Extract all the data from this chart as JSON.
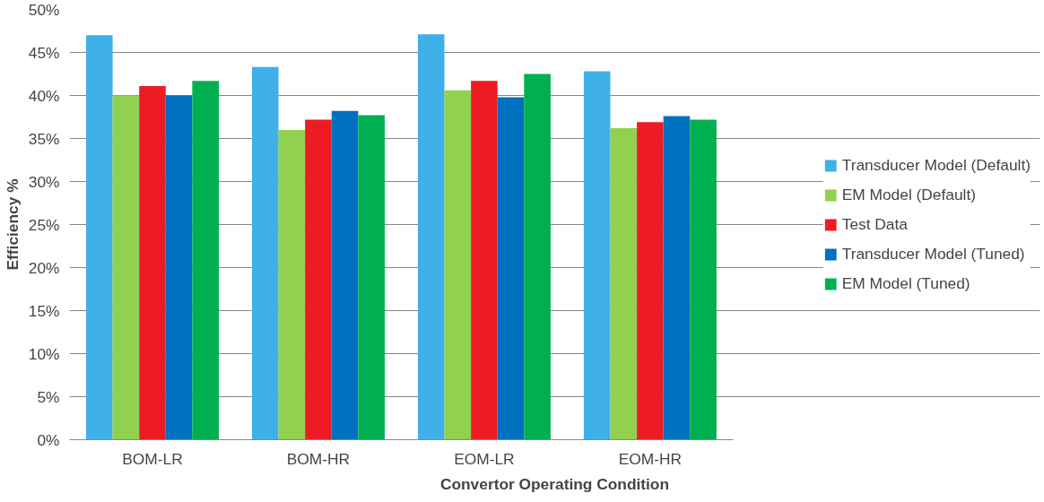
{
  "chart_data": {
    "type": "bar",
    "xlabel": "Convertor Operating Condition",
    "ylabel": "Efficiency %",
    "categories": [
      "BOM-LR",
      "BOM-HR",
      "EOM-LR",
      "EOM-HR"
    ],
    "series": [
      {
        "name": "Transducer Model (Default)",
        "color": "#3fb0e8",
        "values": [
          47.0,
          43.3,
          47.1,
          42.8
        ]
      },
      {
        "name": "EM Model (Default)",
        "color": "#92d050",
        "values": [
          40.0,
          36.0,
          40.6,
          36.2
        ]
      },
      {
        "name": "Test Data",
        "color": "#ed1c24",
        "values": [
          41.1,
          37.2,
          41.7,
          36.9
        ]
      },
      {
        "name": "Transducer Model (Tuned)",
        "color": "#0070c0",
        "values": [
          40.0,
          38.2,
          39.8,
          37.6
        ]
      },
      {
        "name": "EM Model (Tuned)",
        "color": "#00b050",
        "values": [
          41.7,
          37.7,
          42.5,
          37.2
        ]
      }
    ],
    "ylim": [
      0,
      50
    ],
    "yticks": [
      {
        "value": 0,
        "label": "0%"
      },
      {
        "value": 5,
        "label": "5%"
      },
      {
        "value": 10,
        "label": "10%"
      },
      {
        "value": 15,
        "label": "15%"
      },
      {
        "value": 20,
        "label": "20%"
      },
      {
        "value": 25,
        "label": "25%"
      },
      {
        "value": 30,
        "label": "30%"
      },
      {
        "value": 35,
        "label": "35%"
      },
      {
        "value": 40,
        "label": "40%"
      },
      {
        "value": 45,
        "label": "45%"
      },
      {
        "value": 50,
        "label": "50%"
      }
    ],
    "grid": "y",
    "legend": "right"
  }
}
